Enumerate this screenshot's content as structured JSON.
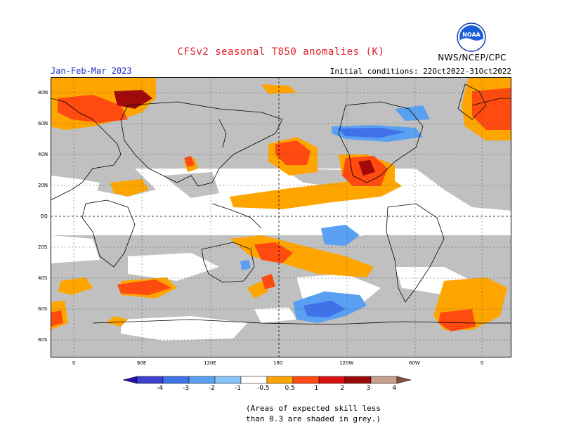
{
  "title": "CFSv2 seasonal T850 anomalies (K)",
  "period": "Jan-Feb-Mar 2023",
  "initial_conditions": "Initial conditions: 22Oct2022-31Oct2022",
  "agency": "NWS/NCEP/CPC",
  "logo_text": "NOAA",
  "lat_labels": [
    "80N",
    "60N",
    "40N",
    "20N",
    "EQ",
    "20S",
    "40S",
    "60S",
    "80S"
  ],
  "lon_labels": [
    "0",
    "60E",
    "120E",
    "180",
    "120W",
    "60W",
    "0"
  ],
  "colorbar": {
    "labels": [
      "-4",
      "-3",
      "-2",
      "-1",
      "-0.5",
      "0.5",
      "1",
      "2",
      "3",
      "4"
    ],
    "colors": [
      "#2a0fa8",
      "#3c3fd0",
      "#3f72e8",
      "#5aa0f2",
      "#88c4f8",
      "#ffffff",
      "#ffa500",
      "#ff4a10",
      "#d81010",
      "#9a0a0a",
      "#c8a090",
      "#8a5040"
    ],
    "grey_color": "#c0c0c0"
  },
  "note_line1": "(Areas of expected skill less",
  "note_line2": "than 0.3 are shaded in grey.)"
}
